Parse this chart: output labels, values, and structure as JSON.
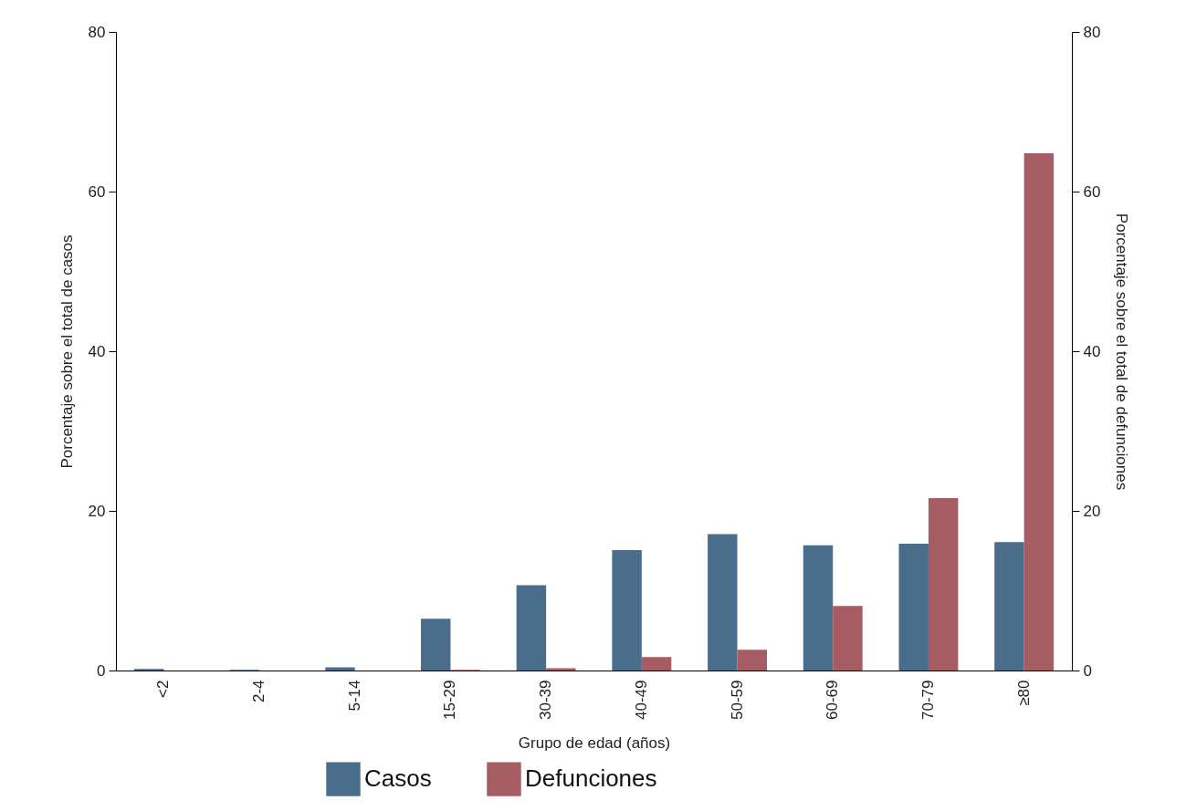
{
  "chart_data": {
    "type": "bar",
    "xlabel": "Grupo de edad (años)",
    "ylabel": "Porcentaje sobre el total de casos",
    "y2label": "Porcentaje sobre el total de defunciones",
    "categories": [
      "<2",
      "2-4",
      "5-14",
      "15-29",
      "30-39",
      "40-49",
      "50-59",
      "60-69",
      "70-79",
      "≥80"
    ],
    "series": [
      {
        "name": "Casos",
        "color": "#4a6d8c",
        "values": [
          0.2,
          0.1,
          0.4,
          6.5,
          10.7,
          15.1,
          17.1,
          15.7,
          15.9,
          16.1
        ]
      },
      {
        "name": "Defunciones",
        "color": "#a65c63",
        "axis": "y2",
        "values": [
          0,
          0,
          0,
          0.1,
          0.3,
          1.7,
          2.6,
          8.1,
          21.6,
          64.8
        ]
      }
    ],
    "ylim": [
      0,
      80
    ],
    "yticks": [
      0,
      20,
      40,
      60,
      80
    ],
    "y2lim": [
      0,
      80
    ],
    "y2ticks": [
      0,
      20,
      40,
      60,
      80
    ],
    "grid": false,
    "legend": "bottom"
  }
}
